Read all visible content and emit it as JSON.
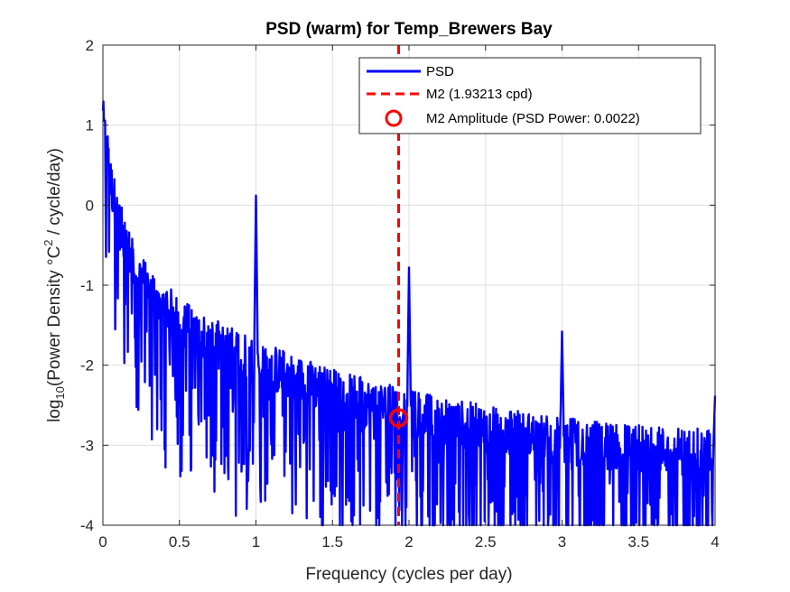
{
  "chart_data": {
    "type": "line",
    "title": "PSD (warm) for Temp_Brewers Bay",
    "xlabel": "Frequency (cycles per day)",
    "ylabel_prefix": "log",
    "ylabel_subscript": "10",
    "ylabel_mid": "(Power Density °C",
    "ylabel_superscript": "2",
    "ylabel_suffix": " / cycle/day)",
    "xlim": [
      0,
      4
    ],
    "ylim": [
      -4,
      2
    ],
    "xticks": [
      0,
      0.5,
      1,
      1.5,
      2,
      2.5,
      3,
      3.5,
      4
    ],
    "xtick_labels": [
      "0",
      "0.5",
      "1",
      "1.5",
      "2",
      "2.5",
      "3",
      "3.5",
      "4"
    ],
    "yticks": [
      -4,
      -3,
      -2,
      -1,
      0,
      1,
      2
    ],
    "ytick_labels": [
      "-4",
      "-3",
      "-2",
      "-1",
      "0",
      "1",
      "2"
    ],
    "grid": true,
    "legend_position": "top-right",
    "series": [
      {
        "name": "PSD",
        "color": "#0000ff",
        "style": "solid",
        "baseline_points": [
          [
            0.005,
            1.0
          ],
          [
            0.02,
            0.8
          ],
          [
            0.05,
            0.3
          ],
          [
            0.1,
            -0.2
          ],
          [
            0.2,
            -0.75
          ],
          [
            0.3,
            -1.05
          ],
          [
            0.5,
            -1.45
          ],
          [
            0.7,
            -1.7
          ],
          [
            1.0,
            -1.95
          ],
          [
            1.3,
            -2.2
          ],
          [
            1.6,
            -2.4
          ],
          [
            2.0,
            -2.6
          ],
          [
            2.5,
            -2.8
          ],
          [
            3.0,
            -2.95
          ],
          [
            3.5,
            -3.05
          ],
          [
            4.0,
            -3.1
          ]
        ],
        "peaks": [
          [
            0.0,
            1.18
          ],
          [
            1.0,
            0.12
          ],
          [
            2.0,
            -0.78
          ],
          [
            3.0,
            -1.58
          ],
          [
            4.0,
            -2.38
          ]
        ]
      },
      {
        "name": "M2 (1.93213 cpd)",
        "color": "#ff0000",
        "style": "dashed",
        "x": 1.93213
      },
      {
        "name": "M2 Amplitude (PSD Power: 0.0022)",
        "color": "#ff0000",
        "style": "circle-marker",
        "x": 1.93213,
        "y": -2.66
      }
    ]
  }
}
